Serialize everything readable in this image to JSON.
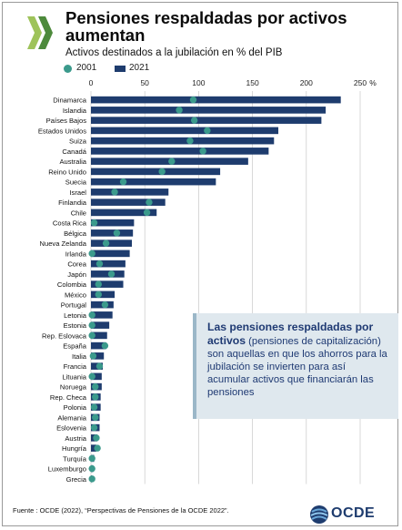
{
  "header": {
    "title": "Pensiones respaldadas por activos aumentan",
    "subtitle": "Activos destinados a la jubilación en % del PIB"
  },
  "legend": [
    {
      "name": "2001",
      "color": "#3b9a8c",
      "shape": "circle"
    },
    {
      "name": "2021",
      "color": "#1e3c6e",
      "shape": "bar"
    }
  ],
  "callout": {
    "bold": "Las pensiones respaldadas por activos",
    "rest": " (pensiones de capitalización) son aquellas en que los ahorros para la jubilación se invierten para así acumular activos que financiarán las pensiones"
  },
  "source": "Fuente : OCDE (2022), “Perspectivas de Pensiones de la OCDE 2022”.",
  "brand": {
    "name": "OCDE"
  },
  "colors": {
    "bar": "#1e3c6e",
    "dot": "#3b9a8c",
    "grid": "#cfcfcf"
  },
  "chart_data": {
    "type": "bar",
    "orientation": "horizontal",
    "title": "Pensiones respaldadas por activos aumentan",
    "subtitle": "Activos destinados a la jubilación en % del PIB",
    "unit": "%",
    "xlim": [
      0,
      250
    ],
    "xticks": [
      0,
      50,
      100,
      150,
      200,
      250
    ],
    "grid": true,
    "categories": [
      "Dinamarca",
      "Islandia",
      "Países Bajos",
      "Estados Unidos",
      "Suiza",
      "Canadá",
      "Australia",
      "Reino Unido",
      "Suecia",
      "Israel",
      "Finlandia",
      "Chile",
      "Costa Rica",
      "Bélgica",
      "Nueva Zelanda",
      "Irlanda",
      "Corea",
      "Japón",
      "Colombia",
      "México",
      "Portugal",
      "Letonia",
      "Estonia",
      "Rep. Eslovaca",
      "España",
      "Italia",
      "Francia",
      "Lituania",
      "Noruega",
      "Rep. Checa",
      "Polonia",
      "Alemania",
      "Eslovenia",
      "Austria",
      "Hungría",
      "Turquía",
      "Luxemburgo",
      "Grecia"
    ],
    "series": [
      {
        "name": "2021",
        "marker": "bar",
        "values": [
          232,
          218,
          214,
          174,
          170,
          165,
          146,
          120,
          116,
          72,
          69,
          61,
          40,
          39,
          38,
          36,
          32,
          31,
          30,
          22,
          21,
          20,
          17,
          15,
          14,
          12,
          11,
          10,
          10,
          9,
          9,
          8,
          8,
          6,
          5,
          3,
          2,
          1
        ]
      },
      {
        "name": "2001",
        "marker": "dot",
        "values": [
          95,
          82,
          96,
          108,
          92,
          104,
          75,
          66,
          30,
          22,
          54,
          52,
          3,
          24,
          14,
          1,
          8,
          19,
          7,
          7,
          13,
          1,
          1,
          1,
          13,
          2,
          8,
          1,
          4,
          4,
          3,
          4,
          3,
          5,
          6,
          1,
          1,
          1
        ]
      }
    ]
  }
}
